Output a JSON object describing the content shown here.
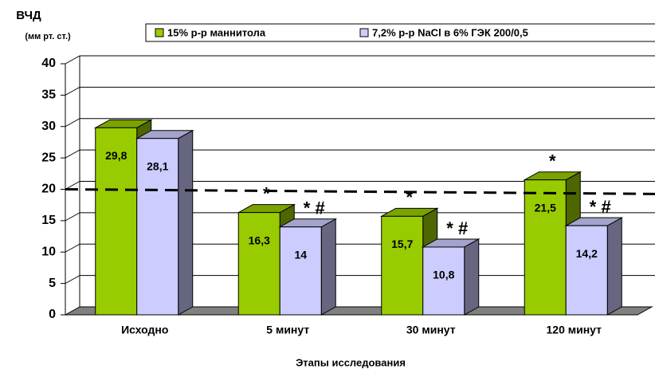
{
  "chart_data": {
    "type": "bar3d",
    "y_label": "ВЧД",
    "y_unit": "(мм рт. ст.)",
    "x_label": "Этапы исследования",
    "categories": [
      "Исходно",
      "5 минут",
      "30 минут",
      "120 минут"
    ],
    "series": [
      {
        "name": "15% р-р маннитола",
        "color": "#99cc00",
        "values": [
          29.8,
          16.3,
          15.7,
          21.5
        ],
        "value_labels": [
          "29,8",
          "16,3",
          "15,7",
          "21,5"
        ],
        "markers": [
          null,
          "*",
          "*",
          "*"
        ]
      },
      {
        "name": "7,2% р-р NaCl в 6% ГЭК 200/0,5",
        "color": "#ccccff",
        "values": [
          28.1,
          14,
          10.8,
          14.2
        ],
        "value_labels": [
          "28,1",
          "14",
          "10,8",
          "14,2"
        ],
        "markers": [
          null,
          "* #",
          "* #",
          "* #"
        ]
      }
    ],
    "threshold": 20,
    "ylim": [
      0,
      40
    ],
    "yticks": [
      0,
      5,
      10,
      15,
      20,
      25,
      30,
      35,
      40
    ],
    "grid": true,
    "legend": "top"
  }
}
